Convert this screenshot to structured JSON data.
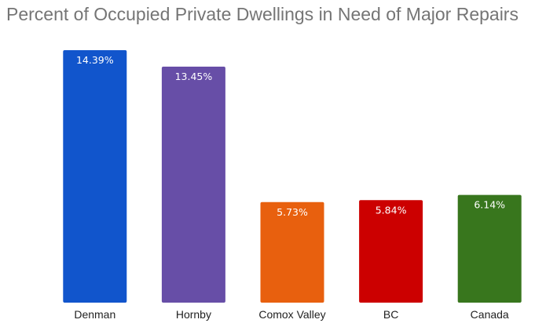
{
  "chart_data": {
    "type": "bar",
    "title": "Percent of Occupied Private Dwellings in Need of Major Repairs",
    "xlabel": "",
    "ylabel": "",
    "categories": [
      "Denman",
      "Hornby",
      "Comox Valley",
      "BC",
      "Canada"
    ],
    "values": [
      14.39,
      13.45,
      5.73,
      5.84,
      6.14
    ],
    "data_labels": [
      "14.39%",
      "13.45%",
      "5.73%",
      "5.84%",
      "6.14%"
    ],
    "colors": [
      "#1155cc",
      "#674ea7",
      "#e8600e",
      "#cc0000",
      "#38761d"
    ],
    "ylim": [
      0,
      14.39
    ],
    "grid": false,
    "legend": "none"
  }
}
